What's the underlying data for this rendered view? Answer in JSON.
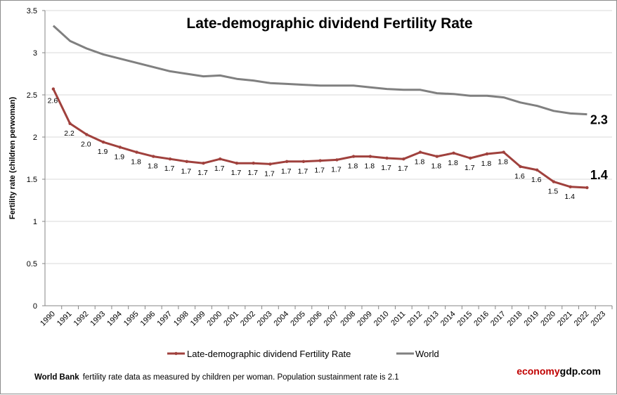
{
  "chart_data": {
    "type": "line",
    "title": "Late-demographic dividend Fertility Rate",
    "ylabel": "Fertility rate (children perwoman)",
    "xlabel": "",
    "ylim": [
      0,
      3.5
    ],
    "yticks": [
      "0",
      "0.5",
      "1",
      "1.5",
      "2",
      "2.5",
      "3",
      "3.5"
    ],
    "grid": true,
    "legend_placement": "bottom",
    "categories": [
      "1990",
      "1991",
      "1992",
      "1993",
      "1994",
      "1995",
      "1996",
      "1997",
      "1998",
      "1999",
      "2000",
      "2001",
      "2002",
      "2003",
      "2004",
      "2005",
      "2006",
      "2007",
      "2008",
      "2009",
      "2010",
      "2011",
      "2012",
      "2013",
      "2014",
      "2015",
      "2016",
      "2017",
      "2018",
      "2019",
      "2020",
      "2021",
      "2022",
      "2023"
    ],
    "series": [
      {
        "name": "Late-demographic dividend Fertility Rate",
        "color": "#a0413d",
        "values": [
          2.57,
          2.16,
          2.03,
          1.94,
          1.88,
          1.82,
          1.77,
          1.74,
          1.71,
          1.69,
          1.74,
          1.69,
          1.69,
          1.68,
          1.71,
          1.71,
          1.72,
          1.73,
          1.77,
          1.77,
          1.75,
          1.74,
          1.82,
          1.77,
          1.81,
          1.75,
          1.8,
          1.82,
          1.65,
          1.61,
          1.47,
          1.41,
          1.4,
          null
        ],
        "data_labels": [
          "2.6",
          "2.2",
          "2.0",
          "1.9",
          "1.9",
          "1.8",
          "1.8",
          "1.7",
          "1.7",
          "1.7",
          "1.7",
          "1.7",
          "1.7",
          "1.7",
          "1.7",
          "1.7",
          "1.7",
          "1.7",
          "1.8",
          "1.8",
          "1.7",
          "1.7",
          "1.8",
          "1.8",
          "1.8",
          "1.7",
          "1.8",
          "1.8",
          "1.6",
          "1.6",
          "1.5",
          "1.4"
        ],
        "end_label": "1.4"
      },
      {
        "name": "World",
        "color": "#808080",
        "values": [
          3.32,
          3.14,
          3.05,
          2.98,
          2.93,
          2.88,
          2.83,
          2.78,
          2.75,
          2.72,
          2.73,
          2.69,
          2.67,
          2.64,
          2.63,
          2.62,
          2.61,
          2.61,
          2.61,
          2.59,
          2.57,
          2.56,
          2.56,
          2.52,
          2.51,
          2.49,
          2.49,
          2.47,
          2.41,
          2.37,
          2.31,
          2.28,
          2.27,
          null
        ],
        "end_label": "2.3"
      }
    ]
  },
  "footer": {
    "source_bold": "World Bank",
    "note": "fertility rate data as measured by children per woman.  Population sustainment rate is 2.1",
    "brand_part1": "economy",
    "brand_part2": "gdp.com",
    "brand_color1": "#c00000",
    "brand_color2": "#000000"
  }
}
